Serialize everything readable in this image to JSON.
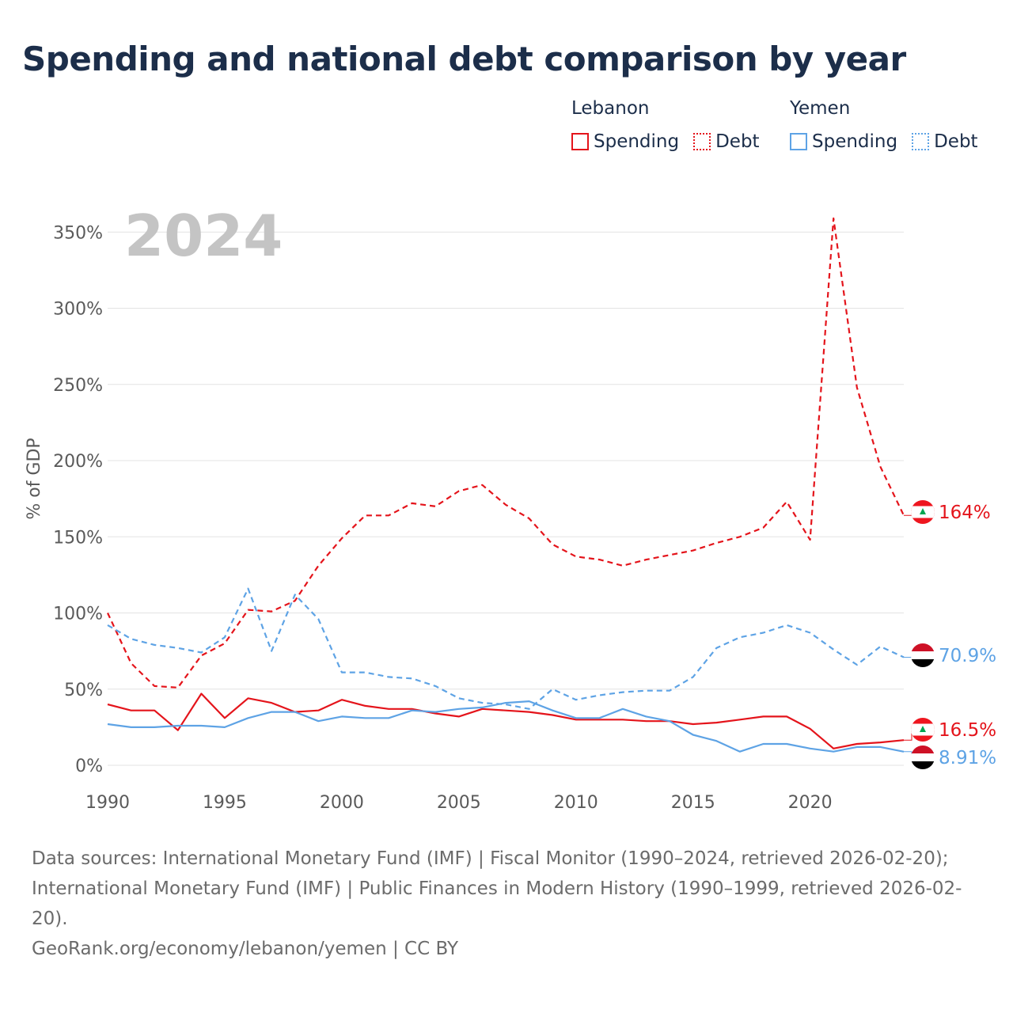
{
  "title": "Spending and national debt comparison by year",
  "legend": {
    "groups": [
      {
        "country": "Lebanon",
        "color": "#e4141b",
        "items": [
          {
            "label": "Spending",
            "style": "solid"
          },
          {
            "label": "Debt",
            "style": "dotted"
          }
        ]
      },
      {
        "country": "Yemen",
        "color": "#5ea3e5",
        "items": [
          {
            "label": "Spending",
            "style": "solid"
          },
          {
            "label": "Debt",
            "style": "dotted"
          }
        ]
      }
    ]
  },
  "chart_data": {
    "type": "line",
    "title": "Spending and national debt comparison by year",
    "year_label": "2024",
    "ylabel": "% of GDP",
    "xlim": [
      1990,
      2024
    ],
    "ylim": [
      0,
      360
    ],
    "x_ticks": [
      1990,
      1995,
      2000,
      2005,
      2010,
      2015,
      2020
    ],
    "y_ticks": [
      0,
      50,
      100,
      150,
      200,
      250,
      300,
      350
    ],
    "y_tick_labels": [
      "0%",
      "50%",
      "100%",
      "150%",
      "200%",
      "250%",
      "300%",
      "350%"
    ],
    "grid": true,
    "x": [
      1990,
      1991,
      1992,
      1993,
      1994,
      1995,
      1996,
      1997,
      1998,
      1999,
      2000,
      2001,
      2002,
      2003,
      2004,
      2005,
      2006,
      2007,
      2008,
      2009,
      2010,
      2011,
      2012,
      2013,
      2014,
      2015,
      2016,
      2017,
      2018,
      2019,
      2020,
      2021,
      2022,
      2023,
      2024
    ],
    "series": [
      {
        "name": "Lebanon Debt",
        "color": "#e4141b",
        "dash": "dashed",
        "values": [
          100,
          67,
          52,
          51,
          72,
          80,
          102,
          101,
          108,
          131,
          149,
          164,
          164,
          172,
          170,
          180,
          184,
          171,
          162,
          145,
          137,
          135,
          131,
          135,
          138,
          141,
          146,
          150,
          156,
          173,
          148,
          359,
          248,
          196,
          164
        ],
        "end_label": "164%"
      },
      {
        "name": "Yemen Debt",
        "color": "#5ea3e5",
        "dash": "dashed",
        "values": [
          92,
          83,
          79,
          77,
          74,
          84,
          116,
          75,
          112,
          96,
          61,
          61,
          58,
          57,
          52,
          44,
          41,
          40,
          37,
          50,
          43,
          46,
          48,
          49,
          49,
          58,
          77,
          84,
          87,
          92,
          87,
          76,
          66,
          78,
          70.9
        ],
        "end_label": "70.9%"
      },
      {
        "name": "Lebanon Spending",
        "color": "#e4141b",
        "dash": "solid",
        "values": [
          40,
          36,
          36,
          23,
          47,
          31,
          44,
          41,
          35,
          36,
          43,
          39,
          37,
          37,
          34,
          32,
          37,
          36,
          35,
          33,
          30,
          30,
          30,
          29,
          29,
          27,
          28,
          30,
          32,
          32,
          24,
          11,
          14,
          15,
          16.5
        ],
        "end_label": "16.5%"
      },
      {
        "name": "Yemen Spending",
        "color": "#5ea3e5",
        "dash": "solid",
        "values": [
          27,
          25,
          25,
          26,
          26,
          25,
          31,
          35,
          35,
          29,
          32,
          31,
          31,
          36,
          35,
          37,
          38,
          41,
          42,
          36,
          31,
          31,
          37,
          32,
          29,
          20,
          16,
          9,
          14,
          14,
          11,
          9,
          12,
          12,
          8.91
        ],
        "end_label": "8.91%"
      }
    ]
  },
  "footer": {
    "sources": "Data sources: International Monetary Fund (IMF) | Fiscal Monitor (1990–2024, retrieved 2026-02-20); International Monetary Fund (IMF) | Public Finances in Modern History (1990–1999, retrieved 2026-02-20).",
    "credit": "GeoRank.org/economy/lebanon/yemen | CC BY"
  }
}
